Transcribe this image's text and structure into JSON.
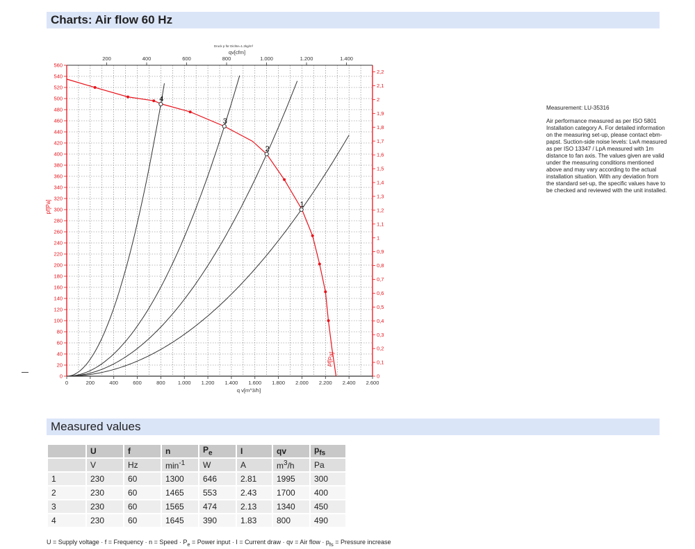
{
  "section_title": "Charts: Air flow 60 Hz",
  "measured_title": "Measured values",
  "measurement_id": "Measurement: LU-35316",
  "measurement_note": "Air performance measured as per ISO 5801 Installation category A. For detailed information on the measuring set-up, please contact ebm-papst. Suction-side noise levels: LwA measured as per ISO 13347 / LpA measured with 1m distance to fan axis. The values given are valid under the measuring conditions mentioned above and may vary according to the actual installation situation. With any deviation from the standard set-up, the specific values have to be checked and reviewed with the unit installed.",
  "chart_data": {
    "type": "line",
    "subtitle": "Druck p für Dichte=1.2kg/m³",
    "xlabel": "q v[m^3/h]",
    "x2label": "qv[cfm]",
    "ylabel": "pf[Pa]",
    "y2label": "pfs_E[IN H2O]",
    "curve_label": "pf[Pa]",
    "xlim": [
      0,
      2600
    ],
    "ylim": [
      0,
      560
    ],
    "x2lim": [
      0,
      1530.3
    ],
    "y2lim": [
      0,
      2.248
    ],
    "x_ticks": [
      "0",
      "200",
      "400",
      "600",
      "800",
      "1.000",
      "1.200",
      "1.400",
      "1.600",
      "1.800",
      "2.000",
      "2.200",
      "2.400",
      "2.600"
    ],
    "y_ticks": [
      "0",
      "20",
      "40",
      "60",
      "80",
      "100",
      "120",
      "140",
      "160",
      "180",
      "200",
      "220",
      "240",
      "260",
      "280",
      "300",
      "320",
      "340",
      "360",
      "380",
      "400",
      "420",
      "440",
      "460",
      "480",
      "500",
      "520",
      "540",
      "560"
    ],
    "x2_ticks": [
      "200",
      "400",
      "600",
      "800",
      "1.000",
      "1.200",
      "1.400"
    ],
    "y2_ticks": [
      "0",
      "0,1",
      "0,2",
      "0,3",
      "0,4",
      "0,5",
      "0,6",
      "0,7",
      "0,8",
      "0,9",
      "1",
      "1,1",
      "1,2",
      "1,3",
      "1,4",
      "1,5",
      "1,6",
      "1,7",
      "1,8",
      "1,9",
      "2",
      "2,1",
      "2,2"
    ],
    "grid": true,
    "fan_curve": {
      "x": [
        0,
        240,
        520,
        740,
        810,
        1050,
        1340,
        1580,
        1700,
        1850,
        2000,
        2090,
        2150,
        2200,
        2225,
        2255,
        2290
      ],
      "y": [
        535,
        520,
        503,
        496,
        490,
        476,
        450,
        423,
        400,
        354,
        300,
        253,
        202,
        152,
        100,
        50,
        0
      ],
      "markers_x": [
        240,
        520,
        740,
        1050,
        1850,
        2090,
        2150,
        2200,
        2225
      ],
      "markers_y": [
        520,
        503,
        496,
        476,
        354,
        253,
        202,
        152,
        100
      ]
    },
    "system_curves": [
      {
        "label": "4",
        "k": 0.0007656,
        "xmax": 830
      },
      {
        "label": "3",
        "k": 0.0002506,
        "xmax": 1470
      },
      {
        "label": "2",
        "k": 0.0001384,
        "xmax": 1960
      },
      {
        "label": "1",
        "k": 7.538e-05,
        "xmax": 2400
      }
    ],
    "operating_points": [
      {
        "label": "1",
        "x": 1995,
        "y": 300
      },
      {
        "label": "2",
        "x": 1700,
        "y": 400
      },
      {
        "label": "3",
        "x": 1340,
        "y": 450
      },
      {
        "label": "4",
        "x": 800,
        "y": 490
      }
    ]
  },
  "table": {
    "headers": [
      "U",
      "f",
      "n",
      "P",
      "I",
      "qv",
      "p"
    ],
    "header_subs": [
      "",
      "",
      "",
      "e",
      "",
      "",
      "fs"
    ],
    "units": [
      "V",
      "Hz",
      "min",
      "W",
      "A",
      "m",
      "Pa"
    ],
    "unit_sups": [
      "",
      "",
      "-1",
      "",
      "",
      "3",
      ""
    ],
    "unit_tails": [
      "",
      "",
      "",
      "",
      "",
      "/h",
      ""
    ],
    "rows": [
      [
        "1",
        "230",
        "60",
        "1300",
        "646",
        "2.81",
        "1995",
        "300"
      ],
      [
        "2",
        "230",
        "60",
        "1465",
        "553",
        "2.43",
        "1700",
        "400"
      ],
      [
        "3",
        "230",
        "60",
        "1565",
        "474",
        "2.13",
        "1340",
        "450"
      ],
      [
        "4",
        "230",
        "60",
        "1645",
        "390",
        "1.83",
        "800",
        "490"
      ]
    ]
  },
  "legend_parts": [
    "U = Supply voltage · f = Frequency · n = Speed · P",
    "e",
    " = Power input · I = Current draw · qv = Air flow · p",
    "fs",
    " = Pressure increase"
  ],
  "colors": {
    "accent": "#e8131b",
    "header_bg": "#dbe5f8",
    "curve": "#333333"
  }
}
